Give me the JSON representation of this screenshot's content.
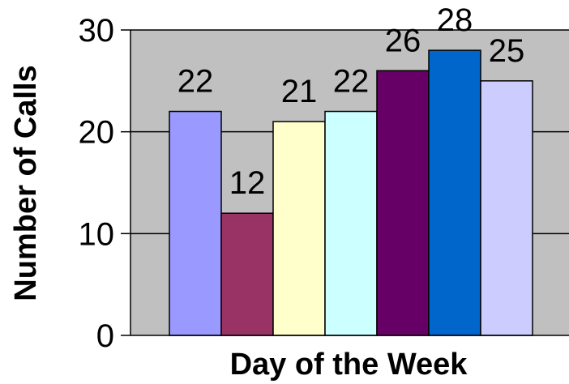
{
  "chart_data": {
    "type": "bar",
    "title": "",
    "xlabel": "Day of the Week",
    "ylabel": "Number of Calls",
    "ylim": [
      0,
      30
    ],
    "yticks": [
      0,
      10,
      20,
      30
    ],
    "grid": true,
    "legend": "none",
    "plot_background": "#c0c0c0",
    "values": [
      22,
      12,
      21,
      22,
      26,
      28,
      25
    ],
    "colors": [
      "#9999ff",
      "#993366",
      "#ffffcc",
      "#ccffff",
      "#660066",
      "#0066cc",
      "#ccccff"
    ]
  }
}
